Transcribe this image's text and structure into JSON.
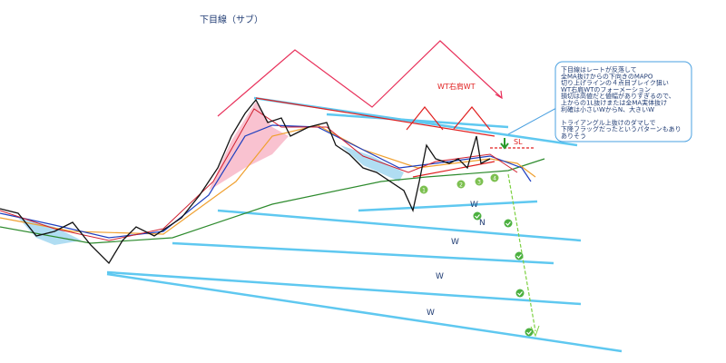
{
  "title": "下目線（サブ）",
  "formation_label": "WT右肩WT",
  "sl_label": "SL",
  "point_labels": [
    "1",
    "2",
    "3",
    "4"
  ],
  "target_labels": [
    "W",
    "N",
    "W",
    "W",
    "W"
  ],
  "note": {
    "lines": [
      "下目線はレートが反落して",
      "全MA抜けからの下向きのMAPO",
      "切り上げラインの４点目ブレイク狙い",
      "WT右肩WTのフォーメーション",
      "損切は高値だと値幅がありすぎるので、",
      "上からの1L抜けまたは全MA実体抜け",
      "利確は小さいWからN、大きいW",
      "",
      "トライアングル上抜けのダマしで",
      "下降フラッグだったというパターンもあり",
      "ありそう"
    ]
  }
}
